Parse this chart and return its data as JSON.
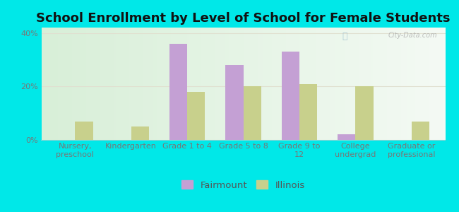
{
  "title": "School Enrollment by Level of School for Female Students",
  "categories": [
    "Nursery,\npreschool",
    "Kindergarten",
    "Grade 1 to 4",
    "Grade 5 to 8",
    "Grade 9 to\n12",
    "College\nundergrad",
    "Graduate or\nprofessional"
  ],
  "fairmount": [
    0,
    0,
    36,
    28,
    33,
    2,
    0
  ],
  "illinois": [
    7,
    5,
    18,
    20,
    21,
    20,
    7
  ],
  "fairmount_color": "#c4a0d4",
  "illinois_color": "#c8d08c",
  "bar_width": 0.32,
  "ylim": [
    0,
    42
  ],
  "yticks": [
    0,
    20,
    40
  ],
  "ytick_labels": [
    "0%",
    "20%",
    "40%"
  ],
  "background_color": "#00e8e8",
  "plot_bg_left": "#d8efd8",
  "plot_bg_right": "#f4faf4",
  "title_fontsize": 13,
  "tick_fontsize": 8,
  "legend_fontsize": 9.5,
  "watermark": "City-Data.com",
  "grid_color": "#e0e0d0",
  "tick_color": "#777777"
}
